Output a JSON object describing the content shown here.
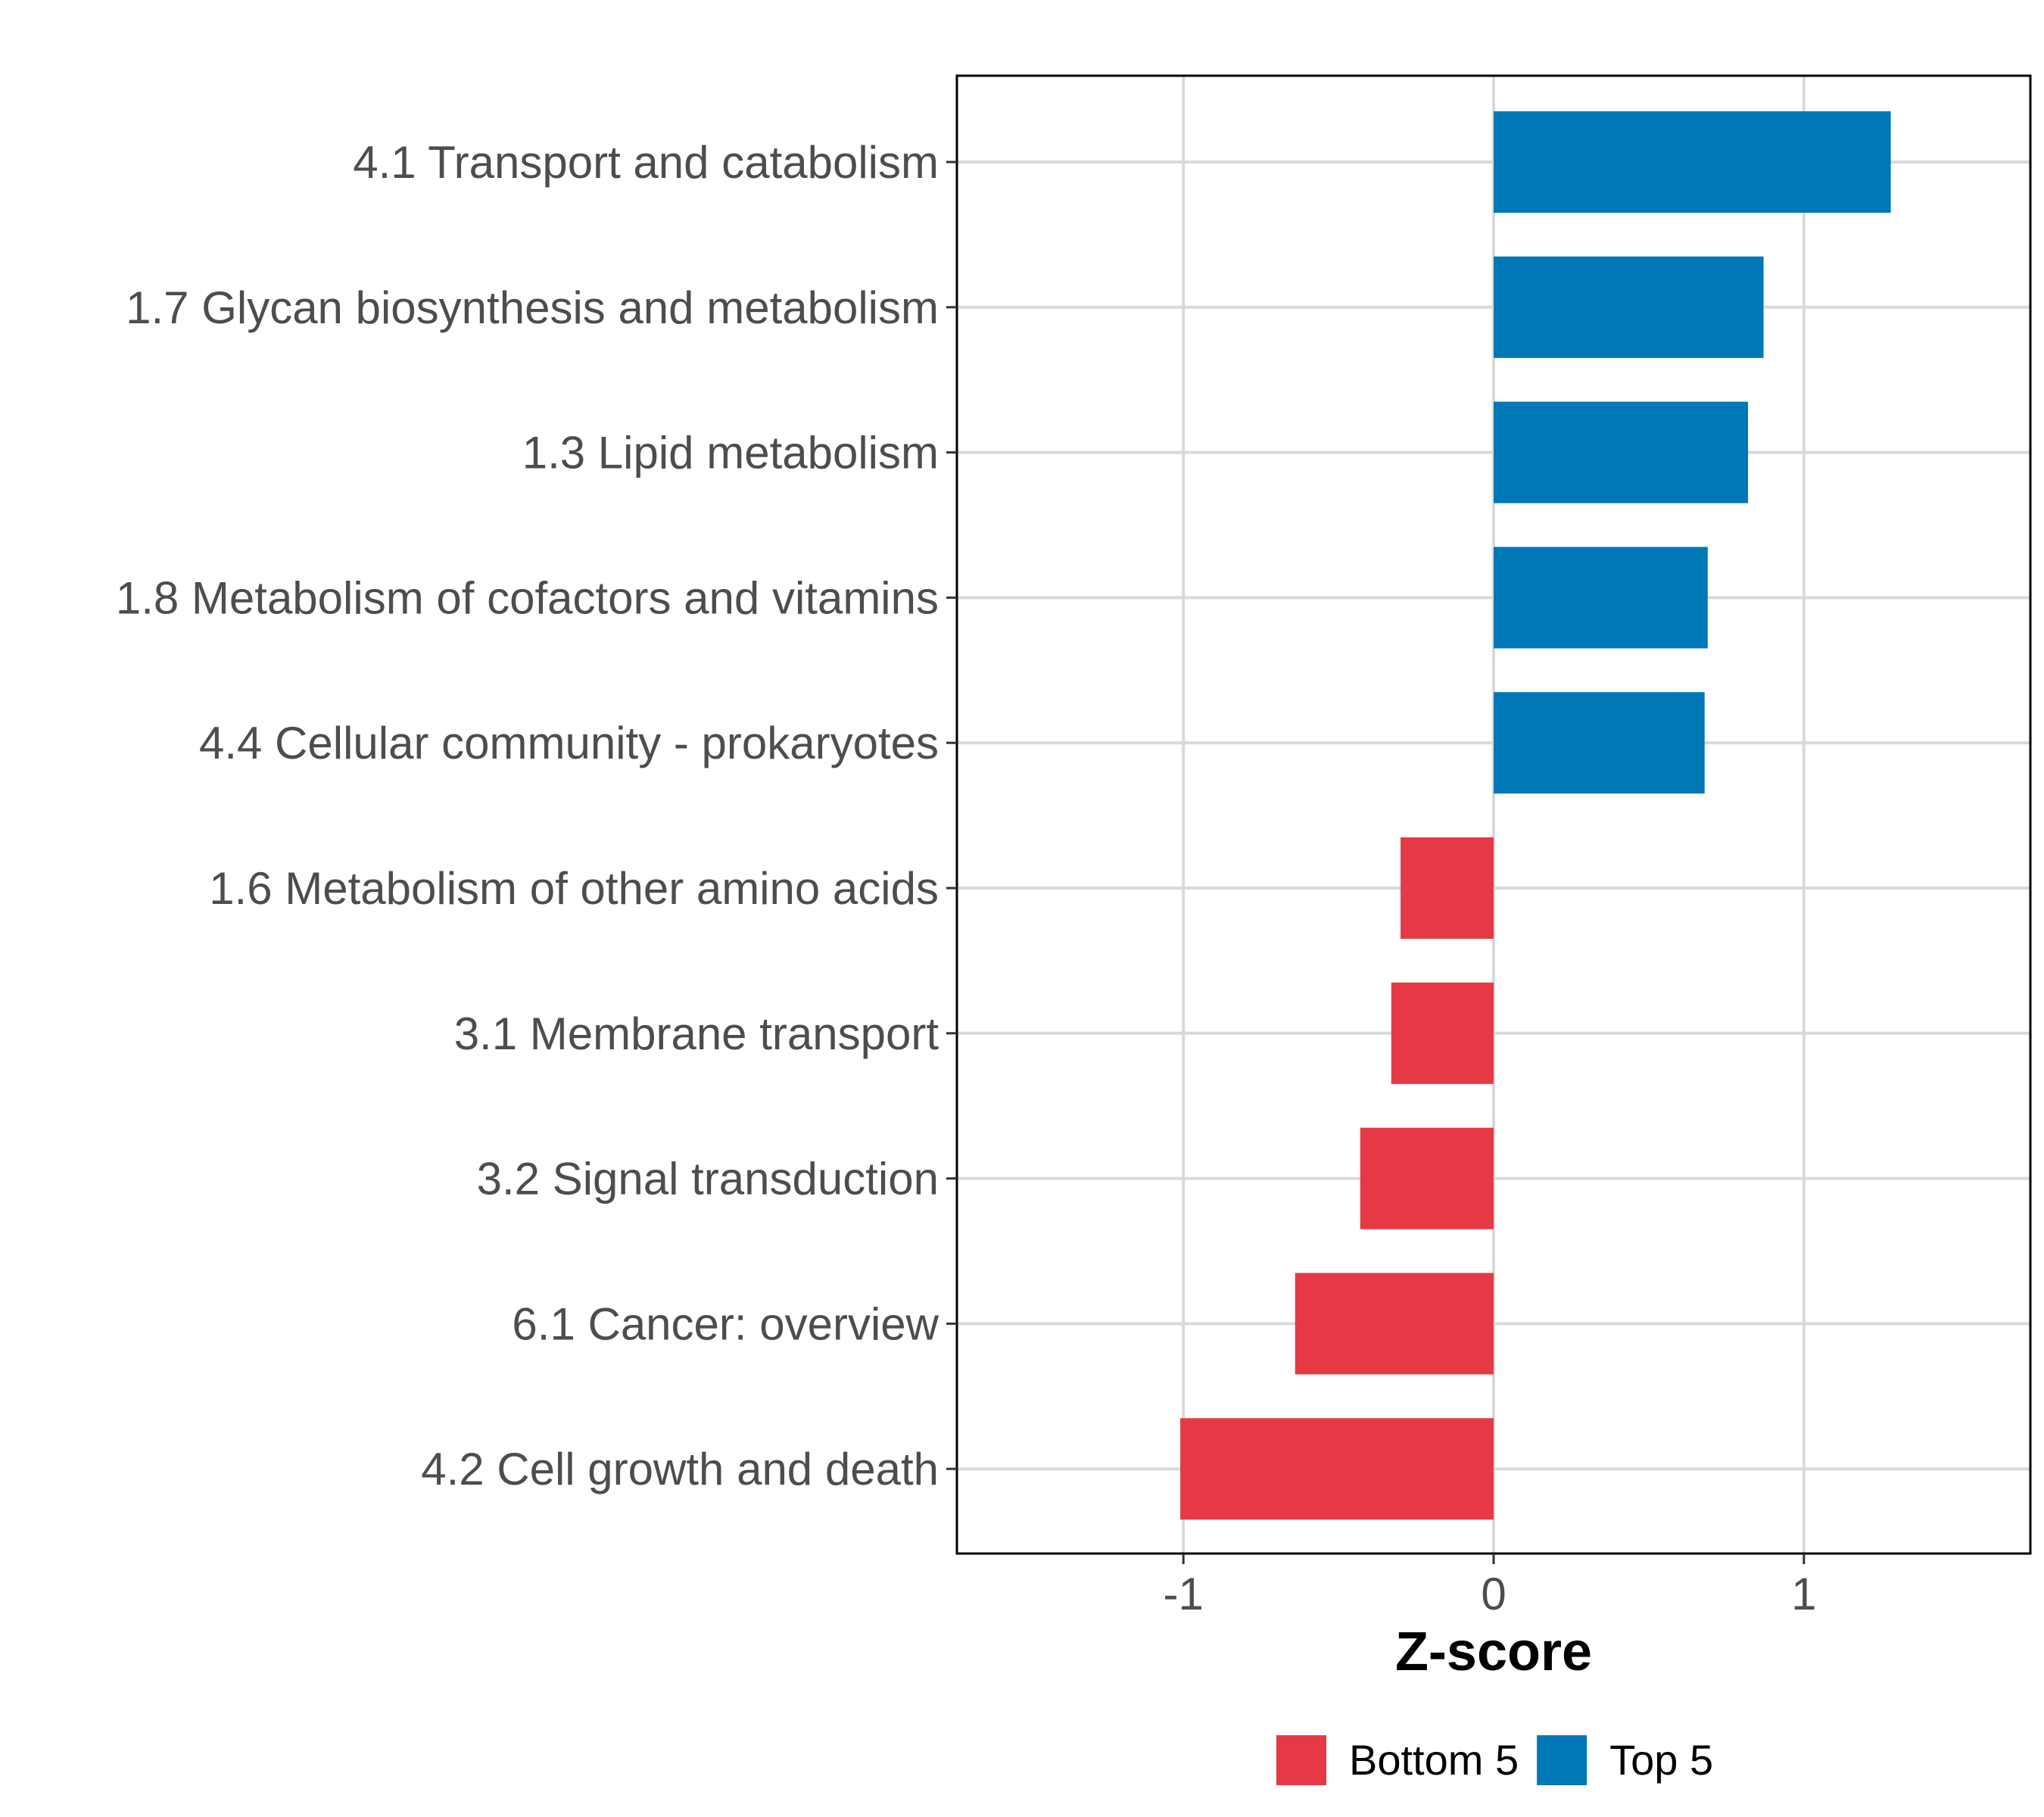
{
  "chart_data": {
    "type": "bar",
    "orientation": "horizontal",
    "xlabel": "Z-score",
    "ylabel": "",
    "xlim": [
      -1.73,
      1.73
    ],
    "xticks": [
      -1,
      0,
      1
    ],
    "xtick_labels": [
      "-1",
      "0",
      "1"
    ],
    "grid": true,
    "legend_position": "bottom",
    "categories": [
      "4.1 Transport and catabolism",
      "1.7 Glycan biosynthesis and metabolism",
      "1.3 Lipid metabolism",
      "1.8 Metabolism of cofactors and vitamins",
      "4.4 Cellular community - prokaryotes",
      "1.6 Metabolism of other amino acids",
      "3.1 Membrane transport",
      "3.2 Signal transduction",
      "6.1 Cancer: overview",
      "4.2 Cell growth and death"
    ],
    "values": [
      1.28,
      0.87,
      0.82,
      0.69,
      0.68,
      -0.3,
      -0.33,
      -0.43,
      -0.64,
      -1.01
    ],
    "groups": [
      "Top 5",
      "Top 5",
      "Top 5",
      "Top 5",
      "Top 5",
      "Bottom 5",
      "Bottom 5",
      "Bottom 5",
      "Bottom 5",
      "Bottom 5"
    ],
    "legend": [
      {
        "name": "Bottom 5",
        "color": "#e63946"
      },
      {
        "name": "Top 5",
        "color": "#0077b6"
      }
    ]
  }
}
